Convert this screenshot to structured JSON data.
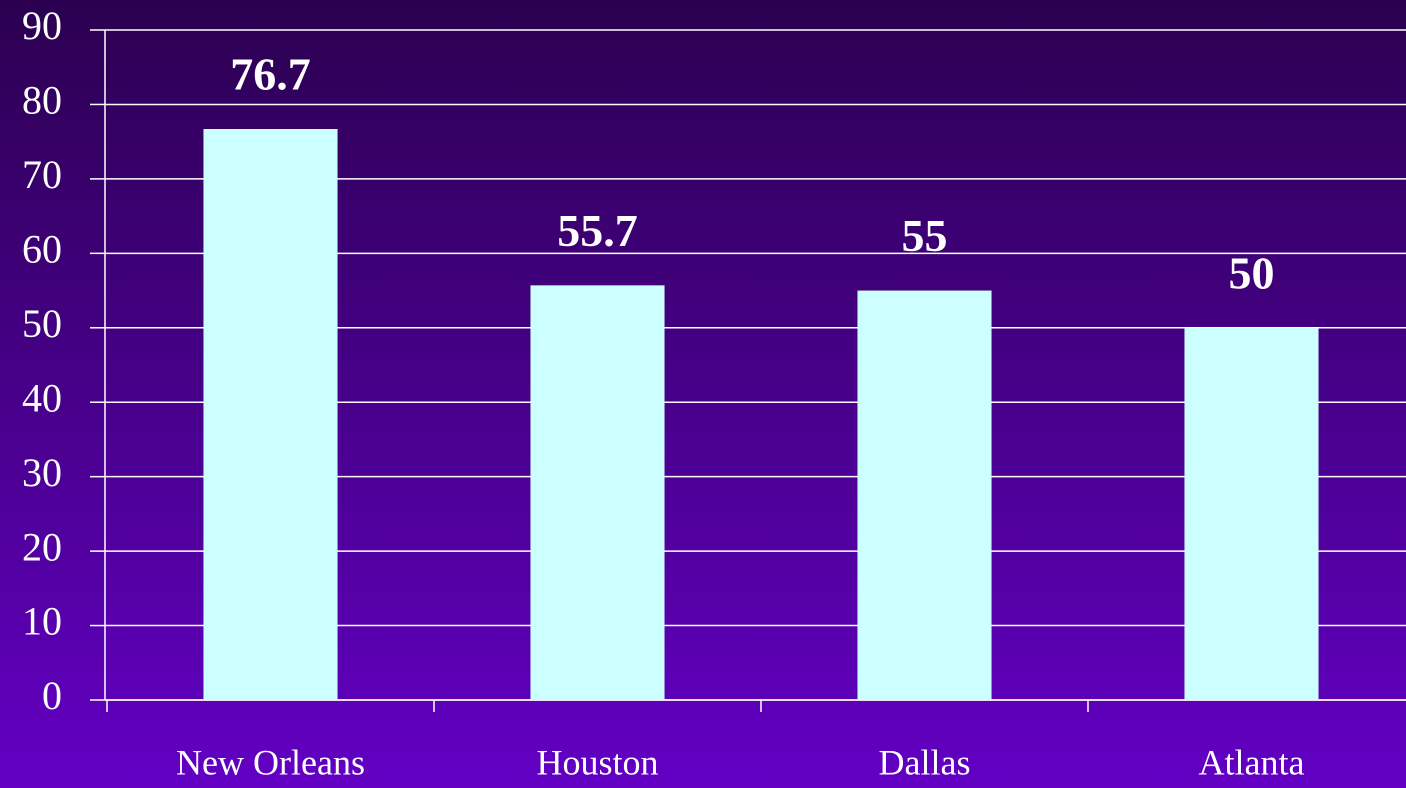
{
  "chart_data": {
    "type": "bar",
    "categories": [
      "New Orleans",
      "Houston",
      "Dallas",
      "Atlanta"
    ],
    "values": [
      76.7,
      55.7,
      55,
      50
    ],
    "color": "#ccffff",
    "ylim": [
      0,
      90
    ],
    "yticks": [
      0,
      10,
      20,
      30,
      40,
      50,
      60,
      70,
      80,
      90
    ],
    "grid": true
  }
}
